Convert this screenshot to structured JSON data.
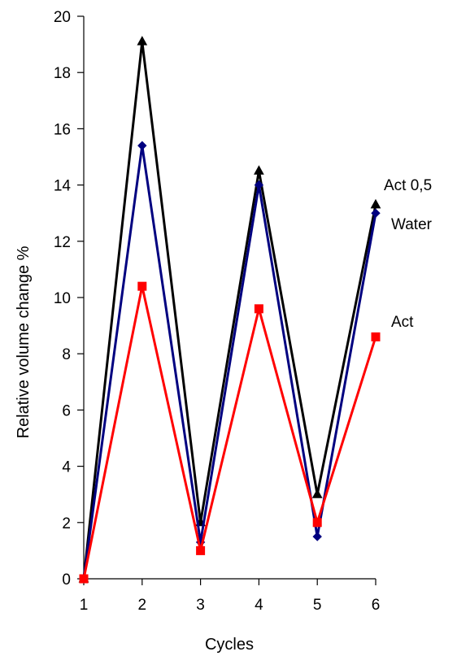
{
  "chart_data": {
    "type": "line",
    "title": "",
    "xlabel": "Cycles",
    "ylabel": "Relative volume change  %",
    "x": [
      1,
      2,
      3,
      4,
      5,
      6
    ],
    "ylim": [
      0,
      20
    ],
    "yticks": [
      0,
      2,
      4,
      6,
      8,
      10,
      12,
      14,
      16,
      18,
      20
    ],
    "grid": false,
    "legend": "none",
    "series": [
      {
        "name": "Act 0,5",
        "color": "#000000",
        "marker": "triangle",
        "values": [
          0,
          19.1,
          2.0,
          14.5,
          3.0,
          13.3
        ]
      },
      {
        "name": "Water",
        "color": "#000080",
        "marker": "diamond",
        "values": [
          0,
          15.4,
          1.3,
          14.0,
          1.5,
          13.0
        ]
      },
      {
        "name": "Act",
        "color": "#ff0000",
        "marker": "square",
        "values": [
          0,
          10.4,
          1.0,
          9.6,
          2.0,
          8.6
        ]
      }
    ]
  }
}
